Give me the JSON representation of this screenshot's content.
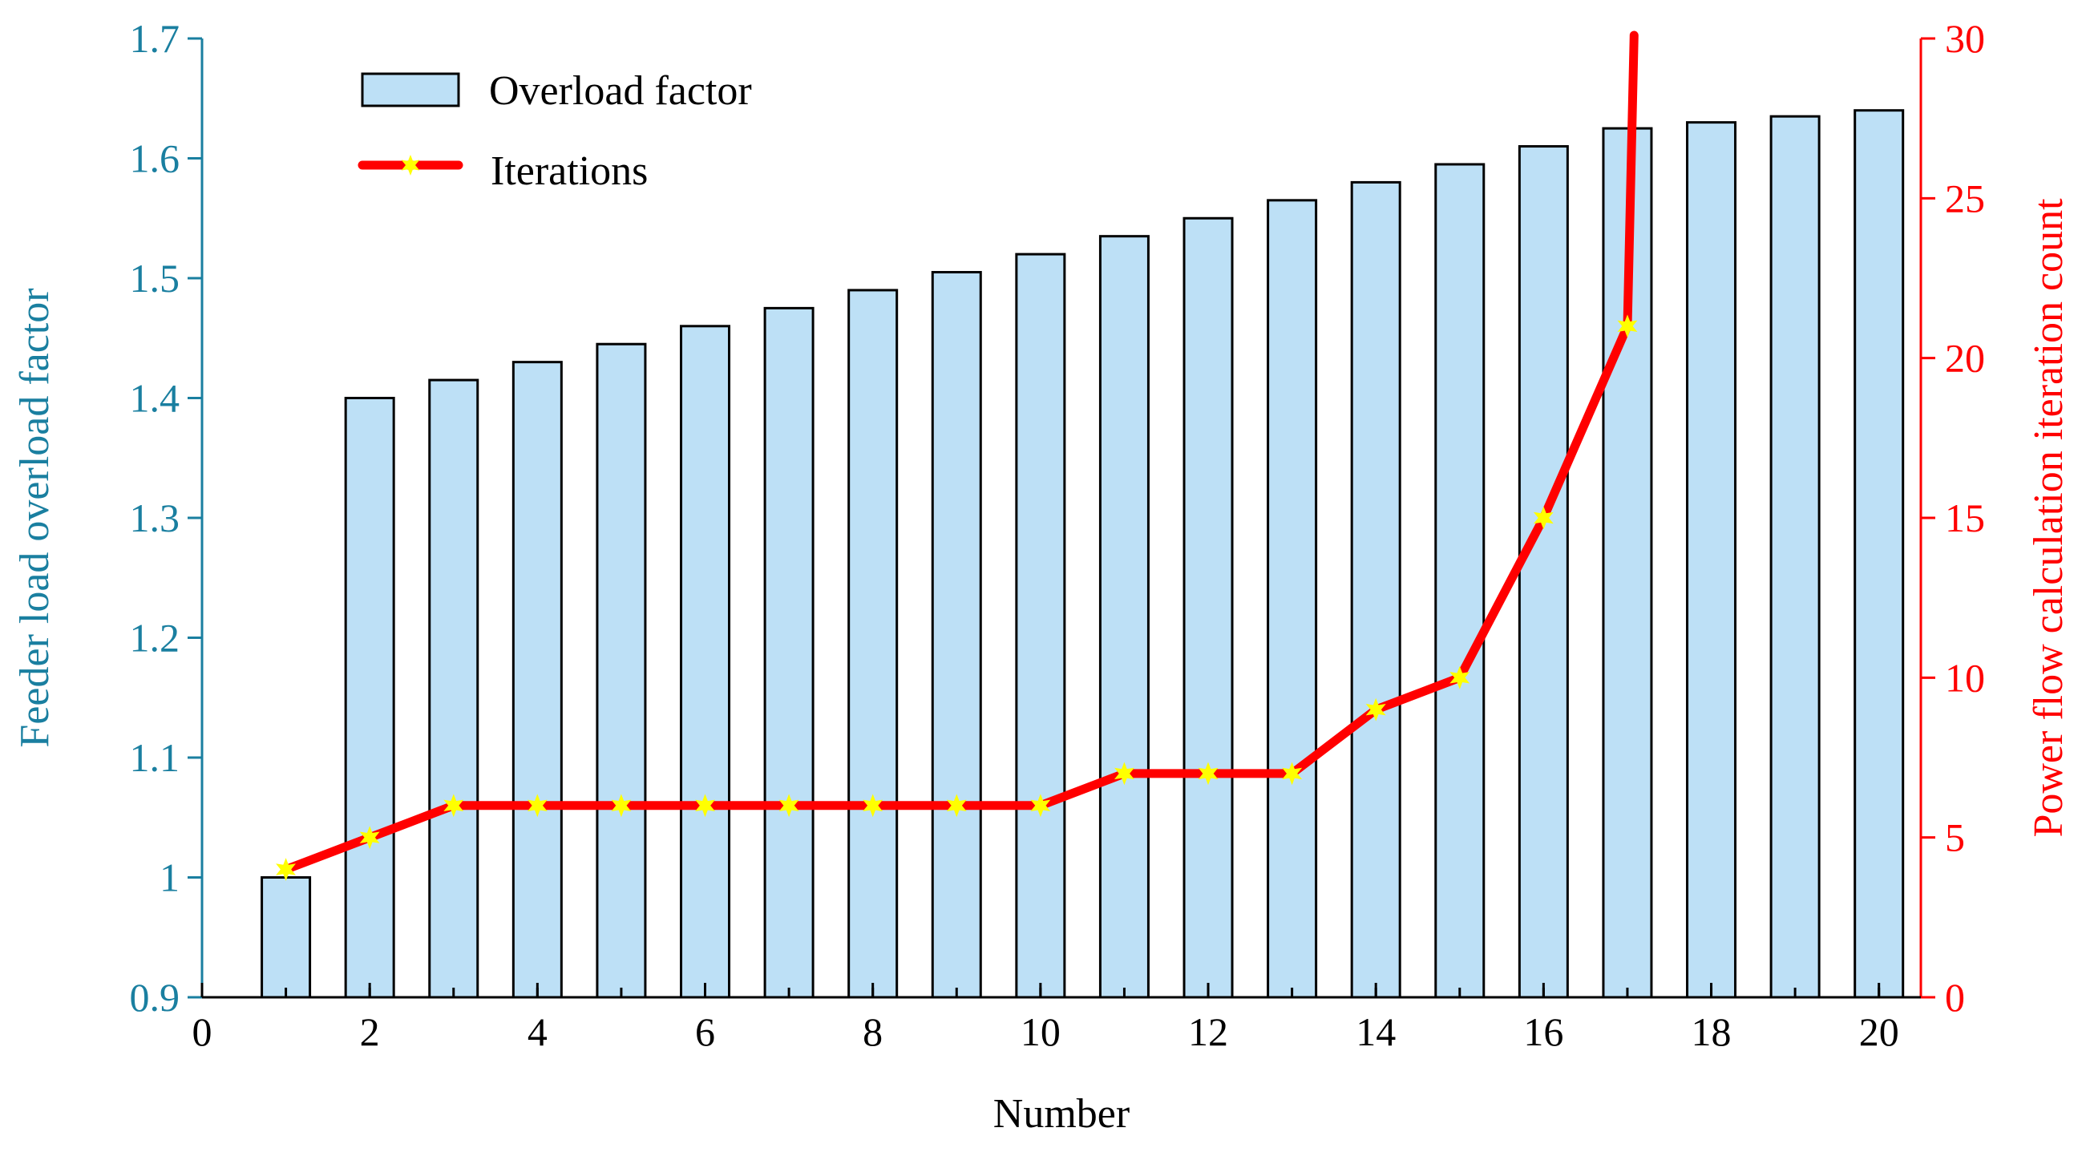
{
  "chart_data": {
    "type": "bar+line",
    "xlabel": "Number",
    "ylabel_left": "Feeder load overload factor",
    "ylabel_right": "Power flow calculation iteration count",
    "xlim": [
      0,
      20.5
    ],
    "ylim_left": [
      0.9,
      1.7
    ],
    "ylim_right": [
      0,
      30
    ],
    "x_ticks": [
      0,
      2,
      4,
      6,
      8,
      10,
      12,
      14,
      16,
      18,
      20
    ],
    "y_ticks_left": [
      0.9,
      1,
      1.1,
      1.2,
      1.3,
      1.4,
      1.5,
      1.6,
      1.7
    ],
    "y_ticks_right": [
      0,
      5,
      10,
      15,
      20,
      25,
      30
    ],
    "y_tick_labels_left": [
      "0.9",
      "1",
      "1.1",
      "1.2",
      "1.3",
      "1.4",
      "1.5",
      "1.6",
      "1.7"
    ],
    "y_tick_labels_right": [
      "0",
      "5",
      "10",
      "15",
      "20",
      "25",
      "30"
    ],
    "x_tick_labels": [
      "0",
      "2",
      "4",
      "6",
      "8",
      "10",
      "12",
      "14",
      "16",
      "18",
      "20"
    ],
    "legend_position": "top-left",
    "grid": false,
    "colors": {
      "left_axis": "#1a7fa0",
      "right_axis": "#ff0000",
      "bar_fill": "#bde0f6",
      "bar_edge": "#000000",
      "line": "#ff0000",
      "marker": "#ffff00"
    },
    "series": [
      {
        "name": "Overload factor",
        "kind": "bar",
        "axis": "left",
        "x": [
          1,
          2,
          3,
          4,
          5,
          6,
          7,
          8,
          9,
          10,
          11,
          12,
          13,
          14,
          15,
          16,
          17,
          18,
          19,
          20
        ],
        "values": [
          1.0,
          1.4,
          1.415,
          1.43,
          1.445,
          1.46,
          1.475,
          1.49,
          1.505,
          1.52,
          1.535,
          1.55,
          1.565,
          1.58,
          1.595,
          1.61,
          1.625,
          1.63,
          1.635,
          1.64
        ]
      },
      {
        "name": "Iterations",
        "kind": "line",
        "axis": "right",
        "marker": "star",
        "x": [
          1,
          2,
          3,
          4,
          5,
          6,
          7,
          8,
          9,
          10,
          11,
          12,
          13,
          14,
          15,
          16,
          17
        ],
        "values": [
          4,
          5,
          6,
          6,
          6,
          6,
          6,
          6,
          6,
          6,
          7,
          7,
          7,
          9,
          10,
          15,
          21
        ],
        "extends_off_chart_after": 17,
        "off_chart_value_beyond": 30
      }
    ]
  }
}
